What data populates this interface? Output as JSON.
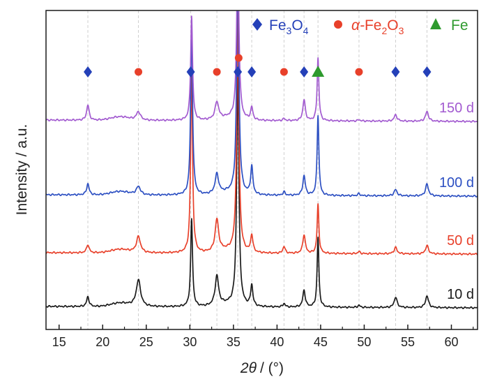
{
  "chart_data": {
    "type": "line",
    "xlabel_symbol": "2θ",
    "xlabel_unit": "/ (°)",
    "ylabel": "Intensity / a.u.",
    "xlim": [
      13.5,
      63
    ],
    "x_ticks": [
      15,
      20,
      25,
      30,
      35,
      40,
      45,
      50,
      55,
      60
    ],
    "grid_x": [
      18.3,
      24.1,
      30.1,
      33.1,
      35.5,
      37.1,
      40.8,
      43.1,
      44.7,
      49.4,
      53.6,
      57.2
    ],
    "legend": {
      "placement": "top-right",
      "entries": [
        {
          "marker": "diamond",
          "base": "Fe",
          "sub1": "3",
          "mid": "O",
          "sub2": "4",
          "color": "#2440b8"
        },
        {
          "marker": "circle",
          "prefix": "α-",
          "base": "Fe",
          "sub1": "2",
          "mid": "O",
          "sub2": "3",
          "color": "#e8402a"
        },
        {
          "marker": "triangle",
          "base": "Fe",
          "color": "#2e9a2e"
        }
      ]
    },
    "phase_markers": [
      {
        "phase": "Fe3O4",
        "marker": "diamond",
        "color": "#2440b8",
        "x": [
          18.3,
          30.1,
          35.5,
          37.1,
          43.1,
          53.6,
          57.2
        ]
      },
      {
        "phase": "a-Fe2O3",
        "marker": "circle",
        "color": "#e8402a",
        "x": [
          24.1,
          33.1,
          40.8,
          49.4
        ]
      },
      {
        "phase": "a-Fe2O3",
        "marker": "circle",
        "color": "#e8402a",
        "x": [
          35.6
        ],
        "raised": true
      },
      {
        "phase": "Fe",
        "marker": "triangle",
        "color": "#2e9a2e",
        "x": [
          44.7
        ]
      }
    ],
    "series": [
      {
        "name": "10 d",
        "color": "#1a1a1a",
        "baseline": 0,
        "peaks": [
          {
            "x": 18.3,
            "h": 14,
            "w": 0.17
          },
          {
            "x": 24.1,
            "h": 38,
            "w": 0.3
          },
          {
            "x": 30.2,
            "h": 125,
            "w": 0.13
          },
          {
            "x": 33.1,
            "h": 42,
            "w": 0.24
          },
          {
            "x": 35.5,
            "h": 330,
            "w": 0.15
          },
          {
            "x": 37.1,
            "h": 30,
            "w": 0.15
          },
          {
            "x": 40.8,
            "h": 5,
            "w": 0.15
          },
          {
            "x": 43.1,
            "h": 24,
            "w": 0.17
          },
          {
            "x": 44.7,
            "h": 100,
            "w": 0.12
          },
          {
            "x": 49.4,
            "h": 3,
            "w": 0.15
          },
          {
            "x": 53.6,
            "h": 15,
            "w": 0.2
          },
          {
            "x": 57.2,
            "h": 17,
            "w": 0.2
          }
        ]
      },
      {
        "name": "50 d",
        "color": "#e8402a",
        "baseline": 77,
        "peaks": [
          {
            "x": 18.3,
            "h": 12,
            "w": 0.17
          },
          {
            "x": 24.1,
            "h": 23,
            "w": 0.28
          },
          {
            "x": 30.2,
            "h": 260,
            "w": 0.13
          },
          {
            "x": 33.1,
            "h": 46,
            "w": 0.24
          },
          {
            "x": 35.5,
            "h": 340,
            "w": 0.15
          },
          {
            "x": 37.1,
            "h": 25,
            "w": 0.15
          },
          {
            "x": 40.8,
            "h": 10,
            "w": 0.15
          },
          {
            "x": 43.1,
            "h": 27,
            "w": 0.17
          },
          {
            "x": 44.7,
            "h": 70,
            "w": 0.12
          },
          {
            "x": 49.4,
            "h": 3,
            "w": 0.15
          },
          {
            "x": 53.6,
            "h": 9,
            "w": 0.2
          },
          {
            "x": 57.2,
            "h": 12,
            "w": 0.2
          }
        ]
      },
      {
        "name": "100 d",
        "color": "#2c4fc2",
        "baseline": 160,
        "peaks": [
          {
            "x": 18.3,
            "h": 16,
            "w": 0.17
          },
          {
            "x": 24.1,
            "h": 12,
            "w": 0.28
          },
          {
            "x": 30.2,
            "h": 245,
            "w": 0.13
          },
          {
            "x": 33.1,
            "h": 28,
            "w": 0.24
          },
          {
            "x": 35.5,
            "h": 330,
            "w": 0.15
          },
          {
            "x": 37.1,
            "h": 40,
            "w": 0.15
          },
          {
            "x": 40.8,
            "h": 5,
            "w": 0.15
          },
          {
            "x": 43.1,
            "h": 28,
            "w": 0.17
          },
          {
            "x": 44.7,
            "h": 115,
            "w": 0.12
          },
          {
            "x": 49.4,
            "h": 3,
            "w": 0.15
          },
          {
            "x": 53.6,
            "h": 9,
            "w": 0.2
          },
          {
            "x": 57.2,
            "h": 17,
            "w": 0.2
          }
        ]
      },
      {
        "name": "150 d",
        "color": "#a25ad0",
        "baseline": 267,
        "peaks": [
          {
            "x": 18.3,
            "h": 22,
            "w": 0.17
          },
          {
            "x": 24.1,
            "h": 12,
            "w": 0.28
          },
          {
            "x": 30.2,
            "h": 150,
            "w": 0.13
          },
          {
            "x": 33.1,
            "h": 25,
            "w": 0.24
          },
          {
            "x": 35.5,
            "h": 250,
            "w": 0.15
          },
          {
            "x": 37.1,
            "h": 18,
            "w": 0.15
          },
          {
            "x": 40.8,
            "h": 3,
            "w": 0.15
          },
          {
            "x": 43.1,
            "h": 30,
            "w": 0.17
          },
          {
            "x": 44.7,
            "h": 90,
            "w": 0.12
          },
          {
            "x": 49.4,
            "h": 2,
            "w": 0.15
          },
          {
            "x": 53.6,
            "h": 9,
            "w": 0.2
          },
          {
            "x": 57.2,
            "h": 14,
            "w": 0.2
          }
        ]
      }
    ]
  }
}
